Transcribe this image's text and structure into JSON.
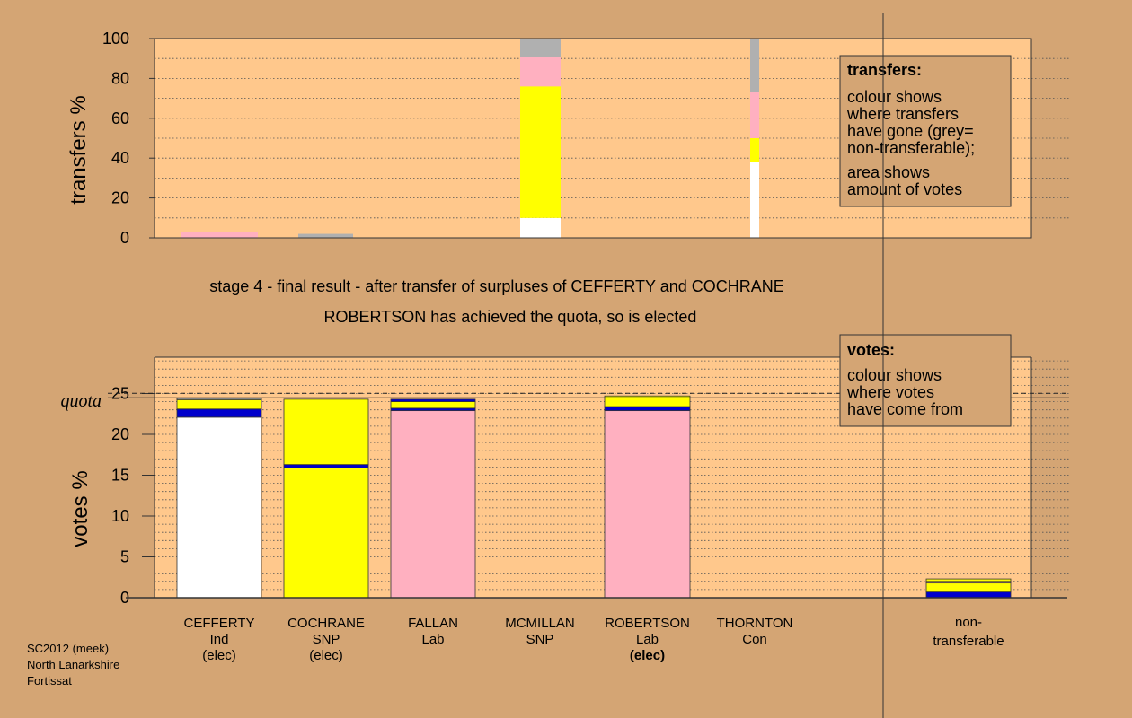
{
  "chart_data": [
    {
      "type": "bar",
      "stacked": true,
      "ylabel": "transfers %",
      "ylim": [
        0,
        100
      ],
      "yticks": [
        0,
        20,
        40,
        60,
        80,
        100
      ],
      "grid": "dotted horizontal",
      "bars": [
        {
          "candidate": "CEFFERTY",
          "segments": [
            {
              "color": "#ffb0c0",
              "from": 0,
              "to": 3
            }
          ]
        },
        {
          "candidate": "COCHRANE",
          "segments": [
            {
              "color": "#b0b0b0",
              "from": 0,
              "to": 2
            }
          ]
        },
        {
          "candidate": "MCMILLAN",
          "segments": [
            {
              "color": "#ffffff",
              "from": 0,
              "to": 10
            },
            {
              "color": "#ffff00",
              "from": 10,
              "to": 76
            },
            {
              "color": "#ffb0c0",
              "from": 76,
              "to": 91
            },
            {
              "color": "#b0b0b0",
              "from": 91,
              "to": 100
            }
          ]
        },
        {
          "candidate": "THORNTON",
          "segments": [
            {
              "color": "#ffffff",
              "from": 0,
              "to": 38
            },
            {
              "color": "#ffff00",
              "from": 38,
              "to": 50
            },
            {
              "color": "#ffb0c0",
              "from": 50,
              "to": 73
            },
            {
              "color": "#b0b0b0",
              "from": 73,
              "to": 100
            }
          ]
        }
      ],
      "legend": {
        "title": "transfers:",
        "lines1": [
          "colour shows",
          "where transfers",
          "have gone (grey=",
          "non-transferable);"
        ],
        "lines2": [
          "area shows",
          "amount of votes"
        ]
      }
    },
    {
      "type": "bar",
      "stacked": true,
      "ylabel": "votes %",
      "ylim": [
        0,
        30
      ],
      "yticks": [
        0,
        5,
        10,
        15,
        20,
        25
      ],
      "quota": 24.7,
      "quota_label": "quota",
      "grid": "dotted horizontal",
      "categories": [
        {
          "name": "CEFFERTY",
          "party": "Ind",
          "status": "(elec)",
          "status_bold": false
        },
        {
          "name": "COCHRANE",
          "party": "SNP",
          "status": "(elec)",
          "status_bold": false
        },
        {
          "name": "FALLAN",
          "party": "Lab",
          "status": "",
          "status_bold": false
        },
        {
          "name": "MCMILLAN",
          "party": "SNP",
          "status": "",
          "status_bold": false
        },
        {
          "name": "ROBERTSON",
          "party": "Lab",
          "status": "(elec)",
          "status_bold": true
        },
        {
          "name": "THORNTON",
          "party": "Con",
          "status": "",
          "status_bold": false
        }
      ],
      "nontransferable_label": [
        "non-",
        "transferable"
      ],
      "bars": [
        {
          "candidate": "CEFFERTY",
          "segments": [
            {
              "color": "#ffffff",
              "from": 0,
              "to": 22.1
            },
            {
              "color": "#0000cc",
              "from": 22.1,
              "to": 23.1
            },
            {
              "color": "#ffff00",
              "from": 23.1,
              "to": 24.3
            },
            {
              "color": "#b0b0b0",
              "from": 24.3,
              "to": 24.4
            }
          ]
        },
        {
          "candidate": "COCHRANE",
          "segments": [
            {
              "color": "#ffff00",
              "from": 0,
              "to": 15.9
            },
            {
              "color": "#0000cc",
              "from": 15.9,
              "to": 16.3
            },
            {
              "color": "#ffff00",
              "from": 16.3,
              "to": 24.3
            }
          ]
        },
        {
          "candidate": "FALLAN",
          "segments": [
            {
              "color": "#ffb0c0",
              "from": 0,
              "to": 22.9
            },
            {
              "color": "#0000cc",
              "from": 22.9,
              "to": 23.2
            },
            {
              "color": "#ffff00",
              "from": 23.2,
              "to": 24.0
            },
            {
              "color": "#0000cc",
              "from": 24.0,
              "to": 24.3
            }
          ]
        },
        {
          "candidate": "MCMILLAN",
          "segments": []
        },
        {
          "candidate": "ROBERTSON",
          "segments": [
            {
              "color": "#ffb0c0",
              "from": 0,
              "to": 22.9
            },
            {
              "color": "#0000cc",
              "from": 22.9,
              "to": 23.4
            },
            {
              "color": "#ffff00",
              "from": 23.4,
              "to": 24.7
            }
          ]
        },
        {
          "candidate": "THORNTON",
          "segments": []
        },
        {
          "candidate": "non-transferable",
          "segments": [
            {
              "color": "#0000cc",
              "from": 0,
              "to": 0.7
            },
            {
              "color": "#ffff00",
              "from": 0.7,
              "to": 1.8
            },
            {
              "color": "#ffb0c0",
              "from": 1.8,
              "to": 2.0
            },
            {
              "color": "#ffff00",
              "from": 2.0,
              "to": 2.3
            }
          ]
        }
      ],
      "legend": {
        "title": "votes:",
        "lines1": [
          "colour shows",
          "where votes",
          "have come from"
        ]
      }
    }
  ],
  "captions": {
    "line1": "stage 4 - final result - after transfer of surpluses of CEFFERTY and COCHRANE",
    "line2": "ROBERTSON has achieved the quota, so is elected"
  },
  "footer": [
    "SC2012 (meek)",
    "North Lanarkshire",
    "Fortissat"
  ]
}
